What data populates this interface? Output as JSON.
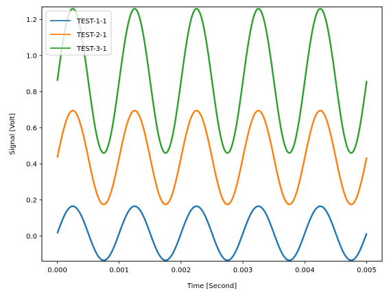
{
  "chart_data": {
    "type": "line",
    "xlabel": "Time [Second]",
    "ylabel": "Signal [Volt]",
    "xlim": [
      -0.00025,
      0.00525
    ],
    "ylim": [
      -0.14,
      1.27
    ],
    "xticks": [
      0.0,
      0.001,
      0.002,
      0.003,
      0.004,
      0.005
    ],
    "xtick_labels": [
      "0.000",
      "0.001",
      "0.002",
      "0.003",
      "0.004",
      "0.005"
    ],
    "yticks": [
      0.0,
      0.2,
      0.4,
      0.6,
      0.8,
      1.0,
      1.2
    ],
    "ytick_labels": [
      "0.0",
      "0.2",
      "0.4",
      "0.6",
      "0.8",
      "1.0",
      "1.2"
    ],
    "grid": false,
    "legend_position": "top-left",
    "series": [
      {
        "name": "TEST-1-1",
        "color": "#1f77b4",
        "x": [
          0,
          0.000125,
          0.00025,
          0.000375,
          0.0005,
          0.000625,
          0.00075,
          0.000875,
          0.001,
          0.001125,
          0.00125,
          0.001375,
          0.0015,
          0.001625,
          0.00175,
          0.001875,
          0.002,
          0.002125,
          0.00225,
          0.002375,
          0.0025,
          0.002625,
          0.00275,
          0.002875,
          0.003,
          0.003125,
          0.00325,
          0.003375,
          0.0035,
          0.003625,
          0.00375,
          0.003875,
          0.004,
          0.004125,
          0.00425,
          0.004375,
          0.0045,
          0.004625,
          0.00475,
          0.004875,
          0.005
        ],
        "y": [
          0.015,
          0.121,
          0.165,
          0.121,
          0.015,
          -0.091,
          -0.135,
          -0.091,
          0.015,
          0.121,
          0.165,
          0.121,
          0.015,
          -0.091,
          -0.135,
          -0.091,
          0.015,
          0.121,
          0.165,
          0.121,
          0.015,
          -0.091,
          -0.135,
          -0.091,
          0.015,
          0.121,
          0.165,
          0.121,
          0.015,
          -0.091,
          -0.135,
          -0.091,
          0.015,
          0.121,
          0.165,
          0.121,
          0.015,
          -0.091,
          -0.135,
          -0.091,
          0.015
        ]
      },
      {
        "name": "TEST-2-1",
        "color": "#ff7f0e",
        "x": [
          0,
          0.000125,
          0.00025,
          0.000375,
          0.0005,
          0.000625,
          0.00075,
          0.000875,
          0.001,
          0.001125,
          0.00125,
          0.001375,
          0.0015,
          0.001625,
          0.00175,
          0.001875,
          0.002,
          0.002125,
          0.00225,
          0.002375,
          0.0025,
          0.002625,
          0.00275,
          0.002875,
          0.003,
          0.003125,
          0.00325,
          0.003375,
          0.0035,
          0.003625,
          0.00375,
          0.003875,
          0.004,
          0.004125,
          0.00425,
          0.004375,
          0.0045,
          0.004625,
          0.00475,
          0.004875,
          0.005
        ],
        "y": [
          0.435,
          0.618,
          0.695,
          0.618,
          0.435,
          0.252,
          0.175,
          0.252,
          0.435,
          0.618,
          0.695,
          0.618,
          0.435,
          0.252,
          0.175,
          0.252,
          0.435,
          0.618,
          0.695,
          0.618,
          0.435,
          0.252,
          0.175,
          0.252,
          0.435,
          0.618,
          0.695,
          0.618,
          0.435,
          0.252,
          0.175,
          0.252,
          0.435,
          0.618,
          0.695,
          0.618,
          0.435,
          0.252,
          0.175,
          0.252,
          0.435
        ]
      },
      {
        "name": "TEST-3-1",
        "color": "#2ca02c",
        "x": [
          0,
          0.000125,
          0.00025,
          0.000375,
          0.0005,
          0.000625,
          0.00075,
          0.000875,
          0.001,
          0.001125,
          0.00125,
          0.001375,
          0.0015,
          0.001625,
          0.00175,
          0.001875,
          0.002,
          0.002125,
          0.00225,
          0.002375,
          0.0025,
          0.002625,
          0.00275,
          0.002875,
          0.003,
          0.003125,
          0.00325,
          0.003375,
          0.0035,
          0.003625,
          0.00375,
          0.003875,
          0.004,
          0.004125,
          0.00425,
          0.004375,
          0.0045,
          0.004625,
          0.00475,
          0.004875,
          0.005
        ],
        "y": [
          0.86,
          1.145,
          1.26,
          1.145,
          0.86,
          0.575,
          0.46,
          0.575,
          0.86,
          1.145,
          1.26,
          1.145,
          0.86,
          0.575,
          0.46,
          0.575,
          0.86,
          1.145,
          1.26,
          1.145,
          0.86,
          0.575,
          0.46,
          0.575,
          0.86,
          1.145,
          1.26,
          1.145,
          0.86,
          0.575,
          0.46,
          0.575,
          0.86,
          1.145,
          1.26,
          1.145,
          0.86,
          0.575,
          0.46,
          0.575,
          0.86
        ]
      }
    ]
  }
}
